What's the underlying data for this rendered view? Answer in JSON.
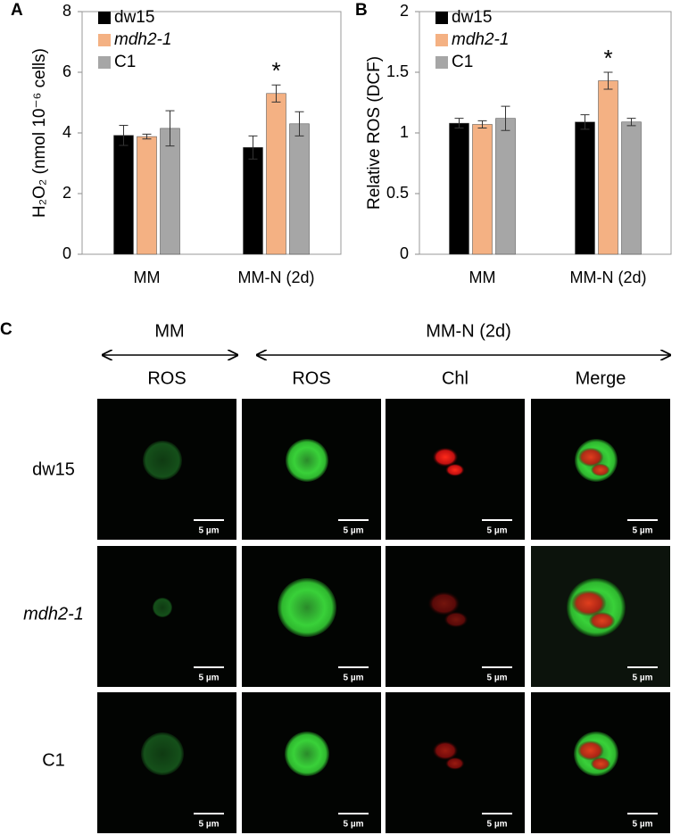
{
  "chart_data": [
    {
      "type": "bar",
      "panel": "A",
      "ylabel": "H₂O₂ (nmol 10⁻⁶ cells)",
      "categories": [
        "MM",
        "MM-N (2d)"
      ],
      "series": [
        {
          "name": "dw15",
          "color": "#000000",
          "values": [
            3.92,
            3.52
          ],
          "errors": [
            0.33,
            0.38
          ]
        },
        {
          "name": "mdh2-1",
          "italic": true,
          "color": "#f4b183",
          "values": [
            3.88,
            5.3
          ],
          "errors": [
            0.08,
            0.28
          ]
        },
        {
          "name": "C1",
          "color": "#a6a6a6",
          "values": [
            4.15,
            4.3
          ],
          "errors": [
            0.58,
            0.4
          ]
        }
      ],
      "annotation": "*",
      "ylim": [
        0,
        8
      ],
      "yticks": [
        0,
        2,
        4,
        6,
        8
      ]
    },
    {
      "type": "bar",
      "panel": "B",
      "ylabel": "Relative ROS (DCF)",
      "categories": [
        "MM",
        "MM-N (2d)"
      ],
      "series": [
        {
          "name": "dw15",
          "color": "#000000",
          "values": [
            1.08,
            1.09
          ],
          "errors": [
            0.04,
            0.06
          ]
        },
        {
          "name": "mdh2-1",
          "italic": true,
          "color": "#f4b183",
          "values": [
            1.07,
            1.43
          ],
          "errors": [
            0.03,
            0.07
          ]
        },
        {
          "name": "C1",
          "color": "#a6a6a6",
          "values": [
            1.12,
            1.09
          ],
          "errors": [
            0.1,
            0.03
          ]
        }
      ],
      "annotation": "*",
      "ylim": [
        0,
        2
      ],
      "yticks": [
        0,
        0.5,
        1,
        1.5,
        2
      ]
    }
  ],
  "panel_c": {
    "panel": "C",
    "conditions": [
      "MM",
      "MM-N (2d)"
    ],
    "columns": [
      "ROS",
      "ROS",
      "Chl",
      "Merge"
    ],
    "rows": [
      "dw15",
      "mdh2-1",
      "C1"
    ],
    "scale_bar": "5 µm"
  }
}
